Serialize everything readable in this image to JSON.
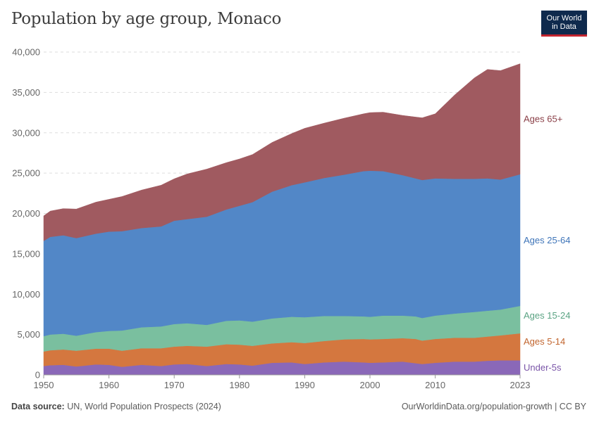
{
  "header": {
    "title": "Population by age group, Monaco",
    "logo_line1": "Our World",
    "logo_line2": "in Data"
  },
  "footer": {
    "source_label": "Data source:",
    "source_text": "UN, World Population Prospects (2024)",
    "url_text": "OurWorldinData.org/population-growth | CC BY"
  },
  "chart_data": {
    "type": "area",
    "stacked": true,
    "title": "Population by age group, Monaco",
    "xlabel": "",
    "ylabel": "",
    "xlim": [
      1950,
      2023
    ],
    "ylim": [
      0,
      40000
    ],
    "grid": true,
    "legend": "inline-right",
    "y_ticks": [
      0,
      5000,
      10000,
      15000,
      20000,
      25000,
      30000,
      35000,
      40000
    ],
    "y_tick_labels": [
      "0",
      "5,000",
      "10,000",
      "15,000",
      "20,000",
      "25,000",
      "30,000",
      "35,000",
      "40,000"
    ],
    "x_ticks": [
      1950,
      1960,
      1970,
      1980,
      1990,
      2000,
      2010,
      2023
    ],
    "x_tick_labels": [
      "1950",
      "1960",
      "1970",
      "1980",
      "1990",
      "2000",
      "2010",
      "2023"
    ],
    "x": [
      1950,
      1951,
      1953,
      1955,
      1958,
      1960,
      1962,
      1965,
      1968,
      1970,
      1972,
      1975,
      1978,
      1980,
      1982,
      1985,
      1988,
      1990,
      1993,
      1996,
      1999,
      2000,
      2002,
      2005,
      2007,
      2008,
      2010,
      2013,
      2016,
      2018,
      2020,
      2023
    ],
    "series": [
      {
        "name": "Under-5s",
        "color": "#8a68b8",
        "values": [
          1100,
          1200,
          1250,
          1050,
          1300,
          1250,
          1000,
          1250,
          1100,
          1300,
          1350,
          1100,
          1350,
          1300,
          1150,
          1500,
          1550,
          1350,
          1550,
          1650,
          1550,
          1500,
          1550,
          1650,
          1450,
          1350,
          1500,
          1650,
          1650,
          1750,
          1800,
          1800
        ]
      },
      {
        "name": "Ages 5-14",
        "color": "#d4773f",
        "values": [
          1800,
          1850,
          1900,
          1950,
          1950,
          2000,
          2000,
          2050,
          2200,
          2200,
          2250,
          2400,
          2450,
          2450,
          2450,
          2400,
          2500,
          2600,
          2650,
          2750,
          2900,
          2900,
          2900,
          2900,
          3000,
          2900,
          2950,
          2950,
          2950,
          3000,
          3100,
          3350
        ]
      },
      {
        "name": "Ages 15-24",
        "color": "#7abf9f",
        "values": [
          1900,
          1950,
          1950,
          1850,
          2050,
          2200,
          2500,
          2600,
          2700,
          2800,
          2800,
          2700,
          2900,
          3000,
          3000,
          3100,
          3150,
          3200,
          3100,
          2900,
          2800,
          2800,
          2900,
          2800,
          2800,
          2800,
          2900,
          3000,
          3200,
          3200,
          3200,
          3400
        ]
      },
      {
        "name": "Ages 25-64",
        "color": "#5287c7",
        "values": [
          11800,
          12100,
          12200,
          12100,
          12200,
          12300,
          12300,
          12300,
          12400,
          12800,
          12900,
          13400,
          13800,
          14200,
          14800,
          15700,
          16300,
          16700,
          17100,
          17500,
          18000,
          18100,
          17900,
          17400,
          17100,
          17100,
          17000,
          16700,
          16500,
          16400,
          16100,
          16300
        ]
      },
      {
        "name": "Ages 65+",
        "color": "#a05a60",
        "values": [
          3100,
          3200,
          3300,
          3600,
          3900,
          4000,
          4300,
          4700,
          5100,
          5200,
          5600,
          5900,
          5800,
          5800,
          5900,
          6100,
          6400,
          6700,
          6800,
          7000,
          7100,
          7200,
          7300,
          7400,
          7600,
          7700,
          8000,
          10400,
          12500,
          13500,
          13500,
          13700
        ]
      }
    ]
  }
}
